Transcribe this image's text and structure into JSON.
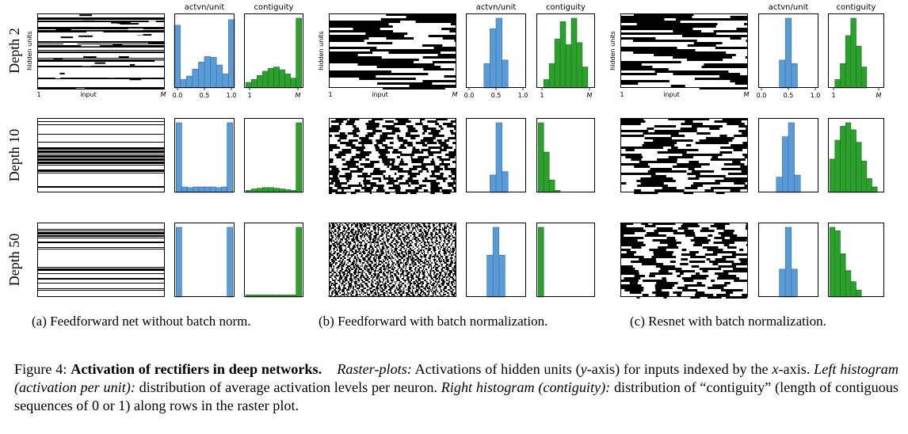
{
  "headers": {
    "actvn": "actvn/unit",
    "contiguity": "contiguity"
  },
  "axis_text": {
    "hidden_units": "hidden units",
    "input": "input",
    "one": "1",
    "M": "M"
  },
  "row_labels": [
    "Depth 2",
    "Depth 10",
    "Depth 50"
  ],
  "subcaptions": [
    "(a) Feedforward net without batch norm.",
    "(b) Feedforward with batch normalization.",
    "(c) Resnet with batch normalization."
  ],
  "caption": {
    "fig_label": "Figure 4:",
    "bold_title": "Activation of rectifiers in deep networks.",
    "raster_label": "Raster-plots:",
    "raster_text_1": " Activations of hidden units (",
    "y_var": "y",
    "raster_text_2": "-axis) for inputs indexed by the ",
    "x_var": "x",
    "raster_text_3": "-axis. ",
    "left_label": "Left histogram (activation per unit):",
    "left_text": " distribution of average activation levels per neuron. ",
    "right_label": "Right histogram (contiguity):",
    "right_text": " distribution of “contiguity” (length of contiguous sequences of 0 or 1) along rows in the raster plot."
  },
  "colors": {
    "actvn_bar": "#5b9bd5",
    "actvn_edge": "#2f6fb0",
    "contig_bar": "#2ca02c",
    "contig_edge": "#1a6e1a"
  },
  "chart_data": [
    {
      "type": "bar",
      "panel": "a",
      "depth": "Depth 2",
      "histogram": "actvn/unit",
      "xlim": [
        0,
        1
      ],
      "xticks": [
        "0.0",
        "0.5",
        "1.0"
      ],
      "bin_edges": [
        0.0,
        0.1,
        0.2,
        0.3,
        0.4,
        0.5,
        0.6,
        0.7,
        0.8,
        0.9,
        1.0
      ],
      "values": [
        0.9,
        0.12,
        0.17,
        0.27,
        0.37,
        0.45,
        0.44,
        0.33,
        0.2,
        0.98
      ]
    },
    {
      "type": "bar",
      "panel": "a",
      "depth": "Depth 2",
      "histogram": "contiguity",
      "xlim": [
        0,
        1
      ],
      "values": [
        0.08,
        0.12,
        0.18,
        0.24,
        0.28,
        0.3,
        0.26,
        0.2,
        0.14,
        1.0
      ]
    },
    {
      "type": "bar",
      "panel": "b",
      "depth": "Depth 2",
      "histogram": "actvn/unit",
      "xlim": [
        0,
        1
      ],
      "xticks": [
        "0.0",
        "0.5",
        "1.0"
      ],
      "bin_edges": [
        0.3,
        0.4,
        0.5,
        0.6,
        0.7
      ],
      "values": [
        0.35,
        0.85,
        1.0,
        0.4
      ]
    },
    {
      "type": "bar",
      "panel": "b",
      "depth": "Depth 2",
      "histogram": "contiguity",
      "xlim": [
        0,
        1
      ],
      "values": [
        0.0,
        0.12,
        0.35,
        0.7,
        0.95,
        0.62,
        1.0,
        0.65,
        0.3,
        0.0
      ]
    },
    {
      "type": "bar",
      "panel": "c",
      "depth": "Depth 2",
      "histogram": "actvn/unit",
      "xlim": [
        0,
        1
      ],
      "xticks": [
        "0.0",
        "0.5",
        "1.0"
      ],
      "bin_edges": [
        0.35,
        0.45,
        0.55,
        0.65
      ],
      "values": [
        0.4,
        1.0,
        0.35
      ]
    },
    {
      "type": "bar",
      "panel": "c",
      "depth": "Depth 2",
      "histogram": "contiguity",
      "xlim": [
        0,
        1
      ],
      "values": [
        0.0,
        0.12,
        0.35,
        0.75,
        1.0,
        0.6,
        0.3,
        0.0,
        0.0,
        0.0
      ]
    },
    {
      "type": "bar",
      "panel": "a",
      "depth": "Depth 10",
      "histogram": "actvn/unit",
      "xlim": [
        0,
        1
      ],
      "values": [
        1.0,
        0.08,
        0.07,
        0.08,
        0.08,
        0.08,
        0.08,
        0.07,
        0.08,
        1.0
      ]
    },
    {
      "type": "bar",
      "panel": "a",
      "depth": "Depth 10",
      "histogram": "contiguity",
      "xlim": [
        0,
        1
      ],
      "values": [
        0.03,
        0.05,
        0.06,
        0.07,
        0.07,
        0.06,
        0.05,
        0.04,
        0.03,
        1.0
      ]
    },
    {
      "type": "bar",
      "panel": "b",
      "depth": "Depth 10",
      "histogram": "actvn/unit",
      "xlim": [
        0,
        1
      ],
      "bin_edges": [
        0.4,
        0.5,
        0.6,
        0.7
      ],
      "values": [
        0.25,
        1.0,
        0.3
      ]
    },
    {
      "type": "bar",
      "panel": "b",
      "depth": "Depth 10",
      "histogram": "contiguity",
      "xlim": [
        0,
        1
      ],
      "values": [
        1.0,
        0.58,
        0.18,
        0.03,
        0.0,
        0.0,
        0.0,
        0.0,
        0.0,
        0.0
      ]
    },
    {
      "type": "bar",
      "panel": "c",
      "depth": "Depth 10",
      "histogram": "actvn/unit",
      "xlim": [
        0,
        1
      ],
      "bin_edges": [
        0.3,
        0.4,
        0.5,
        0.6,
        0.7
      ],
      "values": [
        0.22,
        0.8,
        1.0,
        0.25
      ]
    },
    {
      "type": "bar",
      "panel": "c",
      "depth": "Depth 10",
      "histogram": "contiguity",
      "xlim": [
        0,
        1
      ],
      "values": [
        0.48,
        0.75,
        0.95,
        1.0,
        0.9,
        0.72,
        0.45,
        0.2,
        0.08,
        0.0
      ]
    },
    {
      "type": "bar",
      "panel": "a",
      "depth": "Depth 50",
      "histogram": "actvn/unit",
      "xlim": [
        0,
        1
      ],
      "values": [
        1.0,
        0.0,
        0.0,
        0.0,
        0.0,
        0.0,
        0.0,
        0.0,
        0.0,
        1.0
      ]
    },
    {
      "type": "bar",
      "panel": "a",
      "depth": "Depth 50",
      "histogram": "contiguity",
      "xlim": [
        0,
        1
      ],
      "values": [
        0.03,
        0.03,
        0.03,
        0.03,
        0.03,
        0.03,
        0.03,
        0.03,
        0.03,
        1.0
      ]
    },
    {
      "type": "bar",
      "panel": "b",
      "depth": "Depth 50",
      "histogram": "actvn/unit",
      "xlim": [
        0,
        1
      ],
      "bin_edges": [
        0.35,
        0.45,
        0.55,
        0.65
      ],
      "values": [
        0.6,
        1.0,
        0.6
      ]
    },
    {
      "type": "bar",
      "panel": "b",
      "depth": "Depth 50",
      "histogram": "contiguity",
      "xlim": [
        0,
        1
      ],
      "values": [
        1.0,
        0.0,
        0.0,
        0.0,
        0.0,
        0.0,
        0.0,
        0.0,
        0.0,
        0.0
      ]
    },
    {
      "type": "bar",
      "panel": "c",
      "depth": "Depth 50",
      "histogram": "actvn/unit",
      "xlim": [
        0,
        1
      ],
      "bin_edges": [
        0.35,
        0.45,
        0.55,
        0.65
      ],
      "values": [
        0.4,
        1.0,
        0.4
      ]
    },
    {
      "type": "bar",
      "panel": "c",
      "depth": "Depth 50",
      "histogram": "contiguity",
      "xlim": [
        0,
        1
      ],
      "values": [
        1.0,
        0.95,
        0.62,
        0.38,
        0.22,
        0.1,
        0.0,
        0.0,
        0.0,
        0.0
      ]
    }
  ]
}
